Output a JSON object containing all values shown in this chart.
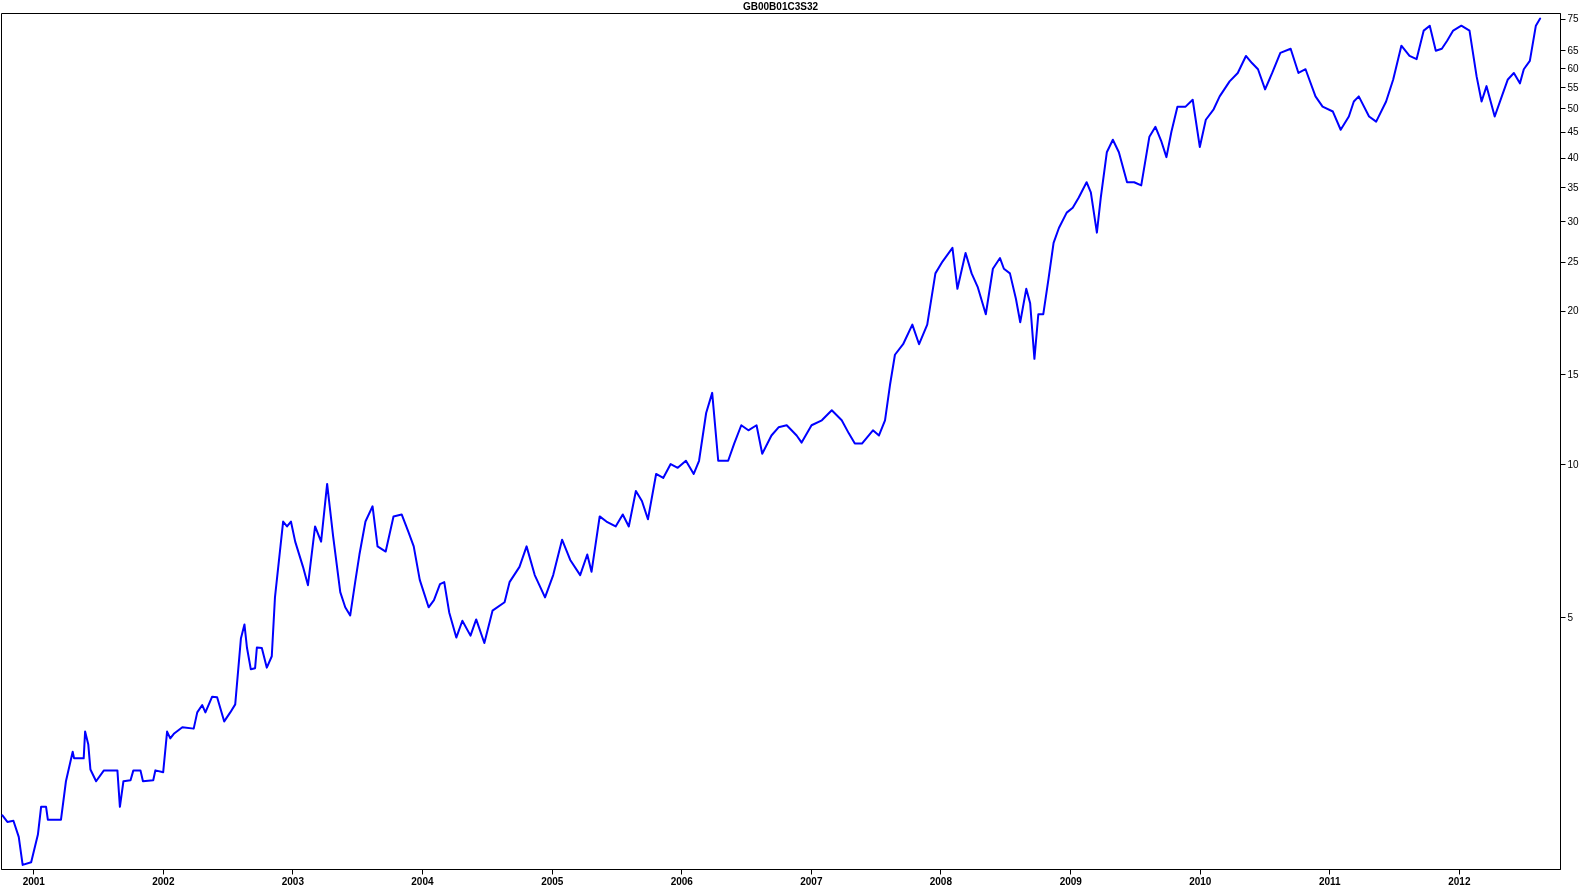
{
  "chart_data": {
    "type": "line",
    "title": "GB00B01C3S32",
    "x": [
      "2000-10-06",
      "2000-10-20",
      "2000-11-06",
      "2000-11-21",
      "2000-12-02",
      "2000-12-26",
      "2001-01-14",
      "2001-01-23",
      "2001-02-06",
      "2001-02-11",
      "2001-03-20",
      "2001-04-03",
      "2001-04-22",
      "2001-04-26",
      "2001-05-23",
      "2001-05-27",
      "2001-06-05",
      "2001-06-11",
      "2001-06-27",
      "2001-07-19",
      "2001-08-26",
      "2001-09-02",
      "2001-09-12",
      "2001-10-02",
      "2001-10-10",
      "2001-10-30",
      "2001-11-06",
      "2001-12-05",
      "2001-12-11",
      "2002-01-02",
      "2002-01-13",
      "2002-01-22",
      "2002-02-01",
      "2002-02-25",
      "2002-03-29",
      "2002-04-08",
      "2002-04-22",
      "2002-05-01",
      "2002-05-20",
      "2002-06-03",
      "2002-06-23",
      "2002-07-10",
      "2002-07-24",
      "2002-08-09",
      "2002-08-19",
      "2002-08-26",
      "2002-09-06",
      "2002-09-18",
      "2002-09-23",
      "2002-10-07",
      "2002-10-21",
      "2002-11-04",
      "2002-11-13",
      "2002-12-06",
      "2002-12-17",
      "2002-12-28",
      "2003-01-09",
      "2003-01-31",
      "2003-02-14",
      "2003-03-06",
      "2003-03-23",
      "2003-04-09",
      "2003-04-26",
      "2003-05-16",
      "2003-05-30",
      "2003-06-13",
      "2003-06-27",
      "2003-07-09",
      "2003-07-26",
      "2003-08-15",
      "2003-08-29",
      "2003-09-21",
      "2003-10-13",
      "2003-11-05",
      "2003-11-24",
      "2003-12-09",
      "2003-12-26",
      "2004-01-20",
      "2004-02-04",
      "2004-02-21",
      "2004-03-04",
      "2004-03-18",
      "2004-04-07",
      "2004-04-24",
      "2004-05-17",
      "2004-06-02",
      "2004-06-25",
      "2004-07-18",
      "2004-08-21",
      "2004-09-04",
      "2004-10-02",
      "2004-10-22",
      "2004-11-14",
      "2004-12-13",
      "2005-01-05",
      "2005-01-30",
      "2005-02-22",
      "2005-03-22",
      "2005-04-11",
      "2005-04-23",
      "2005-05-16",
      "2005-06-04",
      "2005-06-30",
      "2005-07-20",
      "2005-08-06",
      "2005-08-26",
      "2005-09-12",
      "2005-09-29",
      "2005-10-22",
      "2005-11-11",
      "2005-12-02",
      "2005-12-22",
      "2006-01-14",
      "2006-02-05",
      "2006-02-20",
      "2006-03-12",
      "2006-03-29",
      "2006-04-15",
      "2006-05-13",
      "2006-05-30",
      "2006-06-19",
      "2006-07-09",
      "2006-08-01",
      "2006-08-17",
      "2006-09-12",
      "2006-10-02",
      "2006-10-25",
      "2006-11-22",
      "2006-12-06",
      "2007-01-03",
      "2007-02-01",
      "2007-03-01",
      "2007-03-29",
      "2007-04-18",
      "2007-05-05",
      "2007-05-25",
      "2007-06-25",
      "2007-07-12",
      "2007-07-29",
      "2007-08-12",
      "2007-08-26",
      "2007-09-18",
      "2007-10-14",
      "2007-11-02",
      "2007-11-25",
      "2007-12-18",
      "2008-01-07",
      "2008-02-04",
      "2008-02-18",
      "2008-03-12",
      "2008-03-29",
      "2008-04-15",
      "2008-05-08",
      "2008-05-28",
      "2008-06-17",
      "2008-06-28",
      "2008-07-15",
      "2008-08-01",
      "2008-08-13",
      "2008-08-30",
      "2008-09-10",
      "2008-09-22",
      "2008-10-03",
      "2008-10-17",
      "2008-11-01",
      "2008-11-15",
      "2008-11-30",
      "2008-12-22",
      "2009-01-08",
      "2009-01-25",
      "2009-02-16",
      "2009-02-28",
      "2009-03-17",
      "2009-03-28",
      "2009-04-14",
      "2009-05-01",
      "2009-05-18",
      "2009-06-10",
      "2009-06-30",
      "2009-07-20",
      "2009-08-12",
      "2009-08-29",
      "2009-09-15",
      "2009-09-29",
      "2009-10-13",
      "2009-10-30",
      "2009-11-22",
      "2009-12-12",
      "2010-01-01",
      "2010-01-18",
      "2010-02-09",
      "2010-02-26",
      "2010-03-26",
      "2010-04-18",
      "2010-05-11",
      "2010-05-28",
      "2010-06-14",
      "2010-07-04",
      "2010-07-24",
      "2010-08-16",
      "2010-09-14",
      "2010-10-06",
      "2010-10-26",
      "2010-11-23",
      "2010-12-13",
      "2011-01-11",
      "2011-02-02",
      "2011-02-25",
      "2011-03-11",
      "2011-03-25",
      "2011-04-23",
      "2011-05-13",
      "2011-06-10",
      "2011-06-30",
      "2011-07-23",
      "2011-08-15",
      "2011-09-04",
      "2011-09-24",
      "2011-10-11",
      "2011-10-28",
      "2011-11-14",
      "2011-11-29",
      "2011-12-16",
      "2012-01-08",
      "2012-01-31",
      "2012-02-20",
      "2012-03-05",
      "2012-03-19",
      "2012-04-11",
      "2012-05-01",
      "2012-05-18",
      "2012-06-04",
      "2012-06-21",
      "2012-07-02",
      "2012-07-19",
      "2012-08-05",
      "2012-08-17"
    ],
    "series": [
      {
        "color": "#0000ff",
        "values": [
          2.04,
          1.98,
          1.99,
          1.85,
          1.63,
          1.65,
          1.87,
          2.12,
          2.12,
          2.0,
          2.0,
          2.38,
          2.72,
          2.64,
          2.64,
          2.98,
          2.81,
          2.51,
          2.38,
          2.5,
          2.5,
          2.12,
          2.38,
          2.39,
          2.5,
          2.5,
          2.38,
          2.39,
          2.5,
          2.48,
          2.98,
          2.89,
          2.95,
          3.04,
          3.02,
          3.25,
          3.36,
          3.25,
          3.49,
          3.48,
          3.12,
          3.25,
          3.37,
          4.54,
          4.84,
          4.36,
          3.95,
          3.97,
          4.36,
          4.35,
          3.98,
          4.19,
          5.47,
          7.71,
          7.54,
          7.71,
          7.04,
          6.28,
          5.78,
          7.54,
          7.04,
          9.14,
          7.2,
          5.6,
          5.23,
          5.04,
          5.86,
          6.64,
          7.71,
          8.26,
          6.89,
          6.73,
          7.89,
          7.96,
          7.36,
          6.89,
          5.92,
          5.23,
          5.4,
          5.81,
          5.86,
          5.11,
          4.56,
          4.92,
          4.6,
          4.95,
          4.45,
          5.15,
          5.35,
          5.86,
          6.28,
          6.89,
          6.05,
          5.47,
          6.05,
          7.1,
          6.48,
          6.05,
          6.64,
          6.14,
          7.89,
          7.71,
          7.54,
          7.96,
          7.54,
          8.85,
          8.46,
          7.79,
          9.56,
          9.39,
          10.0,
          9.83,
          10.15,
          9.56,
          10.15,
          12.6,
          13.8,
          10.15,
          10.15,
          10.97,
          11.92,
          11.65,
          11.92,
          10.48,
          11.38,
          11.81,
          11.92,
          11.38,
          11.02,
          11.92,
          12.19,
          12.76,
          12.19,
          11.49,
          10.97,
          10.97,
          11.65,
          11.38,
          12.19,
          14.3,
          16.4,
          17.2,
          18.8,
          17.2,
          18.8,
          23.7,
          25.0,
          26.6,
          22.1,
          26.0,
          23.7,
          22.3,
          19.7,
          24.2,
          25.4,
          24.2,
          23.7,
          21.1,
          19.0,
          22.1,
          20.7,
          16.1,
          19.7,
          19.7,
          23.2,
          27.2,
          29.1,
          31.2,
          31.9,
          33.4,
          35.8,
          34.2,
          28.5,
          33.4,
          41.0,
          43.4,
          41.0,
          35.8,
          35.8,
          35.3,
          44.0,
          46.0,
          43.0,
          40.1,
          45.0,
          50.4,
          50.4,
          52.0,
          42.0,
          47.5,
          49.8,
          52.8,
          56.5,
          58.7,
          63.4,
          61.4,
          59.7,
          54.5,
          58.7,
          64.3,
          65.5,
          58.7,
          59.7,
          52.8,
          50.4,
          49.3,
          45.4,
          48.2,
          51.6,
          52.8,
          48.2,
          47.1,
          51.6,
          57.0,
          66.4,
          63.4,
          62.5,
          71.1,
          72.7,
          64.9,
          65.5,
          67.9,
          71.1,
          72.7,
          71.1,
          57.8,
          51.6,
          55.3,
          48.2,
          52.8,
          57.0,
          58.7,
          56.0,
          59.7,
          62.0,
          72.7,
          75.1
        ]
      }
    ],
    "xlim": [
      "2000-10-02",
      "2012-10-12"
    ],
    "xticks": [
      "2001",
      "2002",
      "2003",
      "2004",
      "2005",
      "2006",
      "2007",
      "2008",
      "2009",
      "2010",
      "2011",
      "2012"
    ],
    "ylim": [
      1.6,
      77
    ],
    "yticks": [
      5,
      10,
      15,
      20,
      25,
      30,
      35,
      40,
      45,
      50,
      55,
      60,
      65,
      75
    ],
    "log": true,
    "grid": false,
    "line_style": "solid",
    "marker": "none"
  }
}
